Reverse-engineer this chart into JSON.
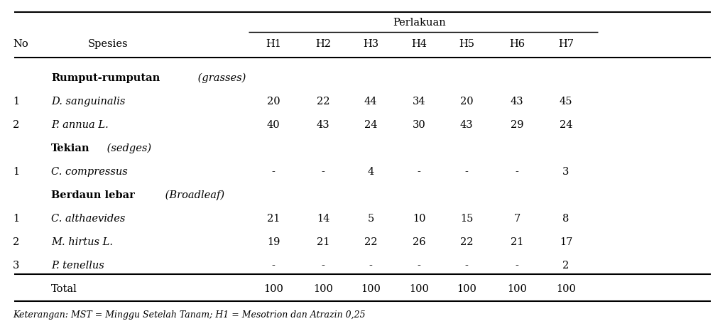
{
  "perlakuan_label": "Perlakuan",
  "col_no": "No",
  "col_spesies": "Spesies",
  "perlakuan_cols": [
    "H1",
    "H2",
    "H3",
    "H4",
    "H5",
    "H6",
    "H7"
  ],
  "rows": [
    {
      "no": "",
      "spesies_bold": "Rumput-rumputan",
      "spesies_italic": " (grasses)",
      "style": "category",
      "values": [
        "",
        "",
        "",
        "",
        "",
        "",
        ""
      ]
    },
    {
      "no": "1",
      "spesies_bold": "",
      "spesies_italic": "D. sanguinalis",
      "style": "italic",
      "values": [
        "20",
        "22",
        "44",
        "34",
        "20",
        "43",
        "45"
      ]
    },
    {
      "no": "2",
      "spesies_bold": "",
      "spesies_italic": "P. annua L.",
      "style": "italic",
      "values": [
        "40",
        "43",
        "24",
        "30",
        "43",
        "29",
        "24"
      ]
    },
    {
      "no": "",
      "spesies_bold": "Tekian",
      "spesies_italic": " (sedges)",
      "style": "category",
      "values": [
        "",
        "",
        "",
        "",
        "",
        "",
        ""
      ]
    },
    {
      "no": "1",
      "spesies_bold": "",
      "spesies_italic": "C. compressus",
      "style": "italic",
      "values": [
        "-",
        "-",
        "4",
        "-",
        "-",
        "-",
        "3"
      ]
    },
    {
      "no": "",
      "spesies_bold": "Berdaun lebar",
      "spesies_italic": " (Broadleaf)",
      "style": "category",
      "values": [
        "",
        "",
        "",
        "",
        "",
        "",
        ""
      ]
    },
    {
      "no": "1",
      "spesies_bold": "",
      "spesies_italic": "C. althaevides",
      "style": "italic",
      "values": [
        "21",
        "14",
        "5",
        "10",
        "15",
        "7",
        "8"
      ]
    },
    {
      "no": "2",
      "spesies_bold": "",
      "spesies_italic": "M. hirtus L.",
      "style": "italic",
      "values": [
        "19",
        "21",
        "22",
        "26",
        "22",
        "21",
        "17"
      ]
    },
    {
      "no": "3",
      "spesies_bold": "",
      "spesies_italic": "P. tenellus",
      "style": "italic",
      "values": [
        "-",
        "-",
        "-",
        "-",
        "-",
        "-",
        "2"
      ]
    },
    {
      "no": "",
      "spesies_bold": "",
      "spesies_italic": "",
      "style": "total",
      "values": [
        "100",
        "100",
        "100",
        "100",
        "100",
        "100",
        "100"
      ]
    }
  ],
  "total_label": "Total",
  "footer": "Keterangan: MST = Minggu Setelah Tanam; H1 = Mesotrion dan Atrazin 0,25",
  "bg_color": "#ffffff",
  "text_color": "#000000",
  "font_size": 10.5
}
